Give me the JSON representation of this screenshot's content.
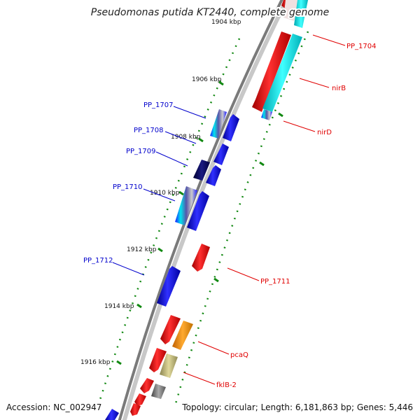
{
  "title": "Pseudomonas putida KT2440, complete genome",
  "footer": {
    "accession": "Accession: NC_002947",
    "summary": "Topology: circular; Length: 6,181,863 bp; Genes: 5,446"
  },
  "ticks": [
    "1904 kbp",
    "1906 kbp",
    "1908 kbp",
    "1910 kbp",
    "1912 kbp",
    "1914 kbp",
    "1916 kbp"
  ],
  "genes_forward": [
    {
      "name": "PP_1704",
      "color": "#e00000"
    },
    {
      "name": "nirB",
      "color": "#e00000"
    },
    {
      "name": "nirD",
      "color": "#e00000"
    },
    {
      "name": "PP_1711",
      "color": "#e00000"
    },
    {
      "name": "pcaQ",
      "color": "#e00000"
    },
    {
      "name": "fklB-2",
      "color": "#e00000"
    }
  ],
  "genes_reverse": [
    {
      "name": "PP_1707",
      "color": "#0000cc"
    },
    {
      "name": "PP_1708",
      "color": "#0000cc"
    },
    {
      "name": "PP_1709",
      "color": "#0000cc"
    },
    {
      "name": "PP_1710",
      "color": "#0000cc"
    },
    {
      "name": "PP_1712",
      "color": "#0000cc"
    }
  ],
  "colors": {
    "backbone": "#8a8a8a",
    "forward_cds": "#ff1a1a",
    "reverse_cds": "#1a1aff",
    "rna_cyan": "#00e5ee",
    "orange": "#ff9900",
    "khaki": "#c9c27a",
    "grey": "#777777",
    "navy": "#000066",
    "dots": "#118811"
  }
}
